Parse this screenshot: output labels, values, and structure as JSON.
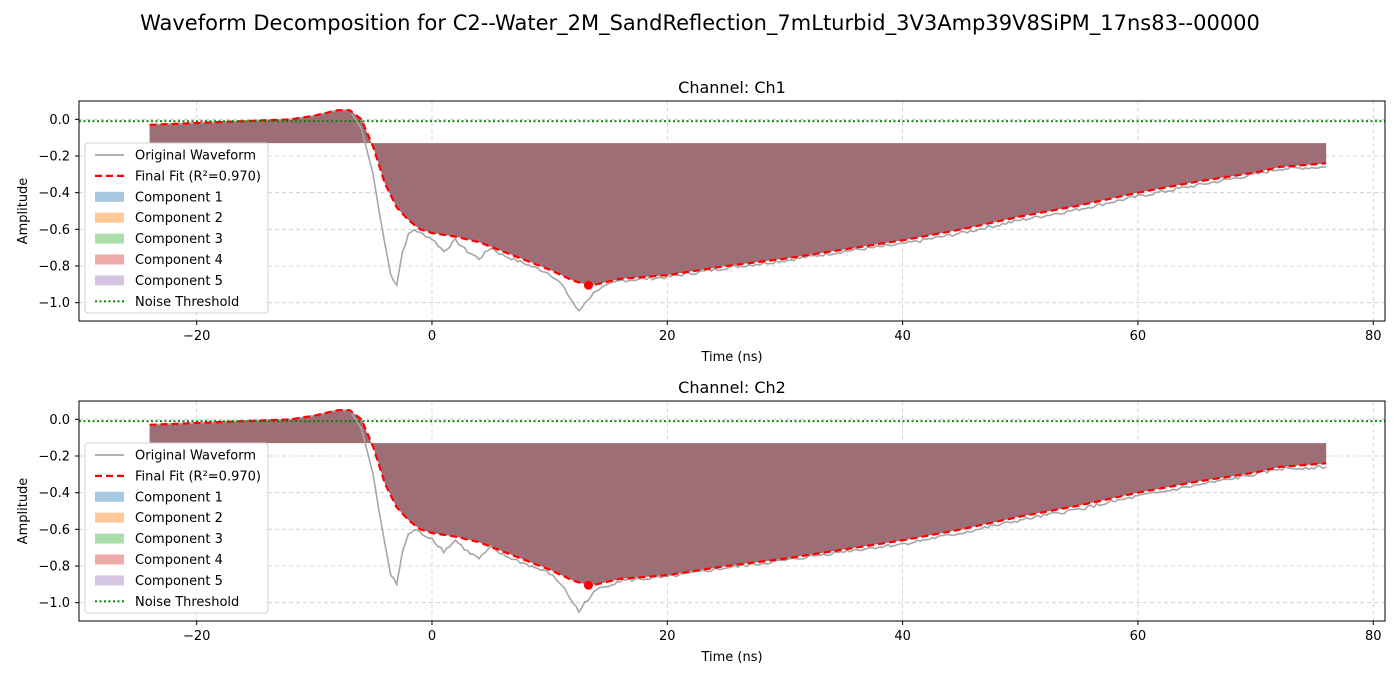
{
  "figure_title": "Waveform Decomposition for C2--Water_2M_SandReflection_7mLturbid_3V3Amp39V8SiPM_17ns83--00000",
  "colors": {
    "original": "#a6a6a6",
    "fit": "#ff0000",
    "stack_fill": "#9e6e76",
    "threshold": "#008000",
    "grid": "#cccccc",
    "components": [
      "#a6c8e0",
      "#ffc999",
      "#acdeac",
      "#efaaaa",
      "#d5c5e2"
    ]
  },
  "chart_data": [
    {
      "type": "area",
      "title": "Channel: Ch1",
      "xlabel": "Time (ns)",
      "ylabel": "Amplitude",
      "xlim": [
        -30,
        81
      ],
      "ylim": [
        -1.1,
        0.1
      ],
      "xticks": [
        -20,
        0,
        20,
        40,
        60,
        80
      ],
      "xtick_labels": [
        "−20",
        "0",
        "20",
        "40",
        "60",
        "80"
      ],
      "yticks": [
        0.0,
        -0.2,
        -0.4,
        -0.6,
        -0.8,
        -1.0
      ],
      "ytick_labels": [
        "0.0",
        "−0.2",
        "−0.4",
        "−0.6",
        "−0.8",
        "−1.0"
      ],
      "grid": true,
      "legend_position": "left",
      "legend": [
        "Original Waveform",
        "Final Fit (R²=0.970)",
        "Component 1",
        "Component 2",
        "Component 3",
        "Component 4",
        "Component 5",
        "Noise Threshold"
      ],
      "noise_threshold": -0.01,
      "peak_marker": {
        "x": 13.3,
        "y": -0.905
      },
      "fit": {
        "x": [
          -24,
          -20,
          -16,
          -12,
          -10,
          -8,
          -7,
          -6,
          -5,
          -4,
          -3,
          -2,
          -1,
          0,
          2,
          4,
          6,
          8,
          10,
          12,
          13.3,
          14,
          16,
          20,
          25,
          30,
          35,
          40,
          45,
          50,
          55,
          60,
          65,
          70,
          72,
          76
        ],
        "y": [
          -0.03,
          -0.02,
          -0.01,
          0.0,
          0.02,
          0.05,
          0.05,
          0.0,
          -0.15,
          -0.35,
          -0.48,
          -0.55,
          -0.6,
          -0.62,
          -0.64,
          -0.67,
          -0.72,
          -0.77,
          -0.82,
          -0.88,
          -0.905,
          -0.9,
          -0.87,
          -0.85,
          -0.8,
          -0.76,
          -0.71,
          -0.66,
          -0.6,
          -0.53,
          -0.47,
          -0.4,
          -0.34,
          -0.29,
          -0.26,
          -0.24
        ]
      },
      "original": {
        "x": [
          -24,
          -20,
          -16,
          -12,
          -10,
          -8,
          -7,
          -6,
          -5,
          -4.5,
          -4,
          -3.5,
          -3,
          -2.5,
          -2,
          -1.5,
          -1,
          0,
          1,
          2,
          3,
          4,
          5,
          6,
          8,
          10,
          11,
          12,
          12.5,
          13,
          14,
          16,
          20,
          25,
          30,
          35,
          40,
          45,
          50,
          55,
          60,
          65,
          70,
          72,
          76
        ],
        "y": [
          -0.03,
          -0.02,
          -0.01,
          0.0,
          0.02,
          0.05,
          0.05,
          -0.05,
          -0.3,
          -0.5,
          -0.68,
          -0.85,
          -0.9,
          -0.72,
          -0.63,
          -0.6,
          -0.62,
          -0.65,
          -0.72,
          -0.66,
          -0.72,
          -0.76,
          -0.7,
          -0.74,
          -0.79,
          -0.84,
          -0.9,
          -1.0,
          -1.05,
          -1.0,
          -0.93,
          -0.88,
          -0.86,
          -0.81,
          -0.77,
          -0.72,
          -0.68,
          -0.62,
          -0.55,
          -0.49,
          -0.42,
          -0.36,
          -0.3,
          -0.27,
          -0.26
        ]
      },
      "component_band": {
        "x_start": -24,
        "x_end": 76,
        "top": -0.13
      }
    },
    {
      "type": "area",
      "title": "Channel: Ch2",
      "xlabel": "Time (ns)",
      "ylabel": "Amplitude",
      "xlim": [
        -30,
        81
      ],
      "ylim": [
        -1.1,
        0.1
      ],
      "xticks": [
        -20,
        0,
        20,
        40,
        60,
        80
      ],
      "xtick_labels": [
        "−20",
        "0",
        "20",
        "40",
        "60",
        "80"
      ],
      "yticks": [
        0.0,
        -0.2,
        -0.4,
        -0.6,
        -0.8,
        -1.0
      ],
      "ytick_labels": [
        "0.0",
        "−0.2",
        "−0.4",
        "−0.6",
        "−0.8",
        "−1.0"
      ],
      "grid": true,
      "legend_position": "left",
      "legend": [
        "Original Waveform",
        "Final Fit (R²=0.970)",
        "Component 1",
        "Component 2",
        "Component 3",
        "Component 4",
        "Component 5",
        "Noise Threshold"
      ],
      "noise_threshold": -0.01,
      "peak_marker": {
        "x": 13.3,
        "y": -0.905
      },
      "fit": {
        "x": [
          -24,
          -20,
          -16,
          -12,
          -10,
          -8,
          -7,
          -6,
          -5,
          -4,
          -3,
          -2,
          -1,
          0,
          2,
          4,
          6,
          8,
          10,
          12,
          13.3,
          14,
          16,
          20,
          25,
          30,
          35,
          40,
          45,
          50,
          55,
          60,
          65,
          70,
          72,
          76
        ],
        "y": [
          -0.03,
          -0.02,
          -0.01,
          0.0,
          0.02,
          0.05,
          0.05,
          0.0,
          -0.15,
          -0.35,
          -0.48,
          -0.55,
          -0.6,
          -0.62,
          -0.64,
          -0.67,
          -0.72,
          -0.77,
          -0.82,
          -0.88,
          -0.905,
          -0.9,
          -0.87,
          -0.85,
          -0.8,
          -0.76,
          -0.71,
          -0.66,
          -0.6,
          -0.53,
          -0.47,
          -0.4,
          -0.34,
          -0.29,
          -0.26,
          -0.24
        ]
      },
      "original": {
        "x": [
          -24,
          -20,
          -16,
          -12,
          -10,
          -8,
          -7,
          -6,
          -5,
          -4.5,
          -4,
          -3.5,
          -3,
          -2.5,
          -2,
          -1.5,
          -1,
          0,
          1,
          2,
          3,
          4,
          5,
          6,
          8,
          10,
          11,
          12,
          12.5,
          13,
          14,
          16,
          20,
          25,
          30,
          35,
          40,
          45,
          50,
          55,
          60,
          65,
          70,
          72,
          76
        ],
        "y": [
          -0.03,
          -0.02,
          -0.01,
          0.0,
          0.02,
          0.05,
          0.05,
          -0.05,
          -0.3,
          -0.5,
          -0.68,
          -0.85,
          -0.9,
          -0.72,
          -0.63,
          -0.6,
          -0.62,
          -0.65,
          -0.72,
          -0.66,
          -0.72,
          -0.76,
          -0.7,
          -0.74,
          -0.79,
          -0.84,
          -0.9,
          -1.0,
          -1.05,
          -1.0,
          -0.93,
          -0.88,
          -0.86,
          -0.81,
          -0.77,
          -0.72,
          -0.68,
          -0.62,
          -0.55,
          -0.49,
          -0.42,
          -0.36,
          -0.3,
          -0.27,
          -0.26
        ]
      },
      "component_band": {
        "x_start": -24,
        "x_end": 76,
        "top": -0.13
      }
    }
  ]
}
